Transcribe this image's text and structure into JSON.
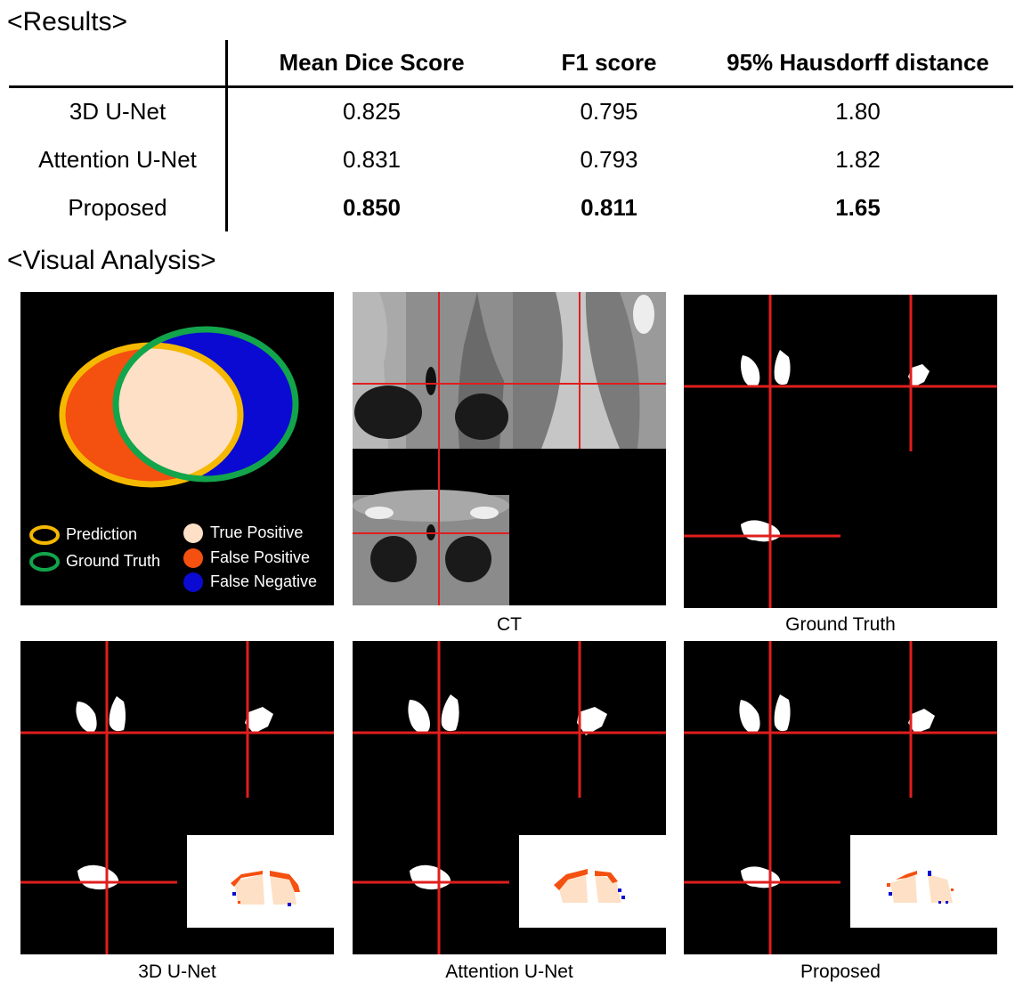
{
  "sections": {
    "results_heading": "<Results>",
    "visual_heading": "<Visual Analysis>"
  },
  "table": {
    "columns": [
      "Mean Dice Score",
      "F1 score",
      "95% Hausdorff distance"
    ],
    "rows": [
      {
        "method": "3D U-Net",
        "values": [
          "0.825",
          "0.795",
          "1.80"
        ],
        "bold": false
      },
      {
        "method": "Attention U-Net",
        "values": [
          "0.831",
          "0.793",
          "1.82"
        ],
        "bold": false
      },
      {
        "method": "Proposed",
        "values": [
          "0.850",
          "0.811",
          "1.65"
        ],
        "bold": true
      }
    ]
  },
  "legend": {
    "prediction": "Prediction",
    "ground_truth": "Ground Truth",
    "true_positive": "True Positive",
    "false_positive": "False Positive",
    "false_negative": "False Negative"
  },
  "captions": {
    "ct": "CT",
    "ground_truth": "Ground Truth",
    "unet3d": "3D U-Net",
    "attention": "Attention U-Net",
    "proposed": "Proposed"
  },
  "colors": {
    "prediction_ring": "#f5b800",
    "ground_truth_ring": "#12a54b",
    "true_positive": "#fde0c5",
    "false_positive": "#f4500f",
    "false_negative": "#0a0ad2",
    "crosshair": "#e01e1e",
    "mask": "#ffffff"
  }
}
